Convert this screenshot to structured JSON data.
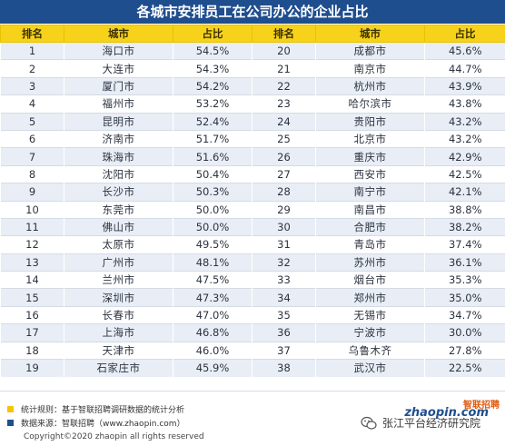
{
  "chart_data": {
    "type": "table",
    "title": "各城市安排员工在公司办公的企业占比",
    "headers": [
      "排名",
      "城市",
      "占比",
      "排名",
      "城市",
      "占比"
    ],
    "rows": [
      {
        "rank": "1",
        "city": "海口市",
        "share": "54.5%"
      },
      {
        "rank": "2",
        "city": "大连市",
        "share": "54.3%"
      },
      {
        "rank": "3",
        "city": "厦门市",
        "share": "54.2%"
      },
      {
        "rank": "4",
        "city": "福州市",
        "share": "53.2%"
      },
      {
        "rank": "5",
        "city": "昆明市",
        "share": "52.4%"
      },
      {
        "rank": "6",
        "city": "济南市",
        "share": "51.7%"
      },
      {
        "rank": "7",
        "city": "珠海市",
        "share": "51.6%"
      },
      {
        "rank": "8",
        "city": "沈阳市",
        "share": "50.4%"
      },
      {
        "rank": "9",
        "city": "长沙市",
        "share": "50.3%"
      },
      {
        "rank": "10",
        "city": "东莞市",
        "share": "50.0%"
      },
      {
        "rank": "11",
        "city": "佛山市",
        "share": "50.0%"
      },
      {
        "rank": "12",
        "city": "太原市",
        "share": "49.5%"
      },
      {
        "rank": "13",
        "city": "广州市",
        "share": "48.1%"
      },
      {
        "rank": "14",
        "city": "兰州市",
        "share": "47.5%"
      },
      {
        "rank": "15",
        "city": "深圳市",
        "share": "47.3%"
      },
      {
        "rank": "16",
        "city": "长春市",
        "share": "47.0%"
      },
      {
        "rank": "17",
        "city": "上海市",
        "share": "46.8%"
      },
      {
        "rank": "18",
        "city": "天津市",
        "share": "46.0%"
      },
      {
        "rank": "19",
        "city": "石家庄市",
        "share": "45.9%"
      },
      {
        "rank": "20",
        "city": "成都市",
        "share": "45.6%"
      },
      {
        "rank": "21",
        "city": "南京市",
        "share": "44.7%"
      },
      {
        "rank": "22",
        "city": "杭州市",
        "share": "43.9%"
      },
      {
        "rank": "23",
        "city": "哈尔滨市",
        "share": "43.8%"
      },
      {
        "rank": "24",
        "city": "贵阳市",
        "share": "43.2%"
      },
      {
        "rank": "25",
        "city": "北京市",
        "share": "43.2%"
      },
      {
        "rank": "26",
        "city": "重庆市",
        "share": "42.9%"
      },
      {
        "rank": "27",
        "city": "西安市",
        "share": "42.5%"
      },
      {
        "rank": "28",
        "city": "南宁市",
        "share": "42.1%"
      },
      {
        "rank": "29",
        "city": "南昌市",
        "share": "38.8%"
      },
      {
        "rank": "30",
        "city": "合肥市",
        "share": "38.2%"
      },
      {
        "rank": "31",
        "city": "青岛市",
        "share": "37.4%"
      },
      {
        "rank": "32",
        "city": "苏州市",
        "share": "36.1%"
      },
      {
        "rank": "33",
        "city": "烟台市",
        "share": "35.3%"
      },
      {
        "rank": "34",
        "city": "郑州市",
        "share": "35.0%"
      },
      {
        "rank": "35",
        "city": "无锡市",
        "share": "34.7%"
      },
      {
        "rank": "36",
        "city": "宁波市",
        "share": "30.0%"
      },
      {
        "rank": "37",
        "city": "乌鲁木齐",
        "share": "27.8%"
      },
      {
        "rank": "38",
        "city": "武汉市",
        "share": "22.5%"
      }
    ]
  },
  "colors": {
    "title_bg": "#1f4e8f",
    "header_bg": "#f6d21a",
    "row_alt": "#e9eef6",
    "note1_marker": "#f6c400",
    "note2_marker": "#1f4e8f",
    "logo_cn": "#e05a10",
    "logo_en": "#1f4e8f"
  },
  "footer": {
    "note1": "统计规则：基于智联招聘调研数据的统计分析",
    "note2": "数据来源：智联招聘（www.zhaopin.com）",
    "copyright": "Copyright©2020 zhaopin all rights reserved",
    "logo_cn": "智联招聘",
    "logo_en": "zhaopin.com",
    "watermark": "张江平台经济研究院",
    "watermark_icon": "wechat-icon"
  }
}
